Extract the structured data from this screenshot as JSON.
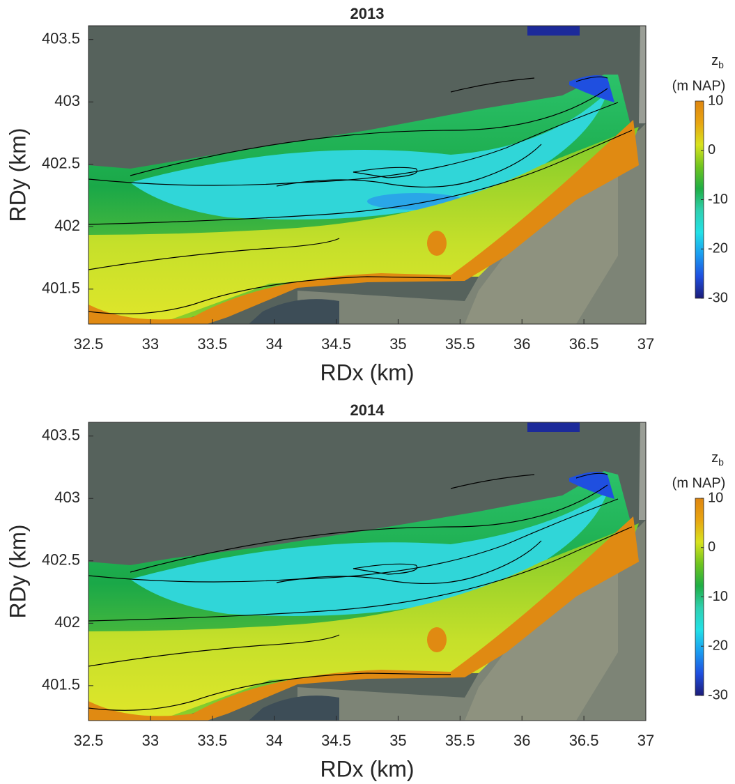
{
  "chart_data": [
    {
      "type": "map",
      "title": "2013",
      "xlabel": "RDx (km)",
      "ylabel": "RDy (km)",
      "xlim": [
        32.5,
        37
      ],
      "ylim": [
        401.22,
        403.61
      ],
      "xticks": [
        32.5,
        33,
        33.5,
        34,
        34.5,
        35,
        35.5,
        36,
        36.5,
        37
      ],
      "yticks": [
        401.5,
        402,
        402.5,
        403,
        403.5
      ],
      "colorbar_title": "z",
      "colorbar_title_sub": "b",
      "colorbar_unit": "(m NAP)",
      "clim": [
        -30,
        10
      ],
      "cticks": [
        -30,
        -20,
        -10,
        0,
        10
      ],
      "colormap": [
        "#1c1c78",
        "#1f4fe0",
        "#1a9cf0",
        "#22e0e6",
        "#2fd0b0",
        "#1fae45",
        "#6ec41f",
        "#d8e21e",
        "#e8a511",
        "#de8510"
      ]
    },
    {
      "type": "map",
      "title": "2014",
      "xlabel": "RDx (km)",
      "ylabel": "RDy (km)",
      "xlim": [
        32.5,
        37
      ],
      "ylim": [
        401.22,
        403.61
      ],
      "xticks": [
        32.5,
        33,
        33.5,
        34,
        34.5,
        35,
        35.5,
        36,
        36.5,
        37
      ],
      "yticks": [
        401.5,
        402,
        402.5,
        403,
        403.5
      ],
      "colorbar_title": "z",
      "colorbar_title_sub": "b",
      "colorbar_unit": "(m NAP)",
      "clim": [
        -30,
        10
      ],
      "cticks": [
        -30,
        -20,
        -10,
        0,
        10
      ],
      "colormap": [
        "#1c1c78",
        "#1f4fe0",
        "#1a9cf0",
        "#22e0e6",
        "#2fd0b0",
        "#1fae45",
        "#6ec41f",
        "#d8e21e",
        "#e8a511",
        "#de8510"
      ]
    }
  ]
}
